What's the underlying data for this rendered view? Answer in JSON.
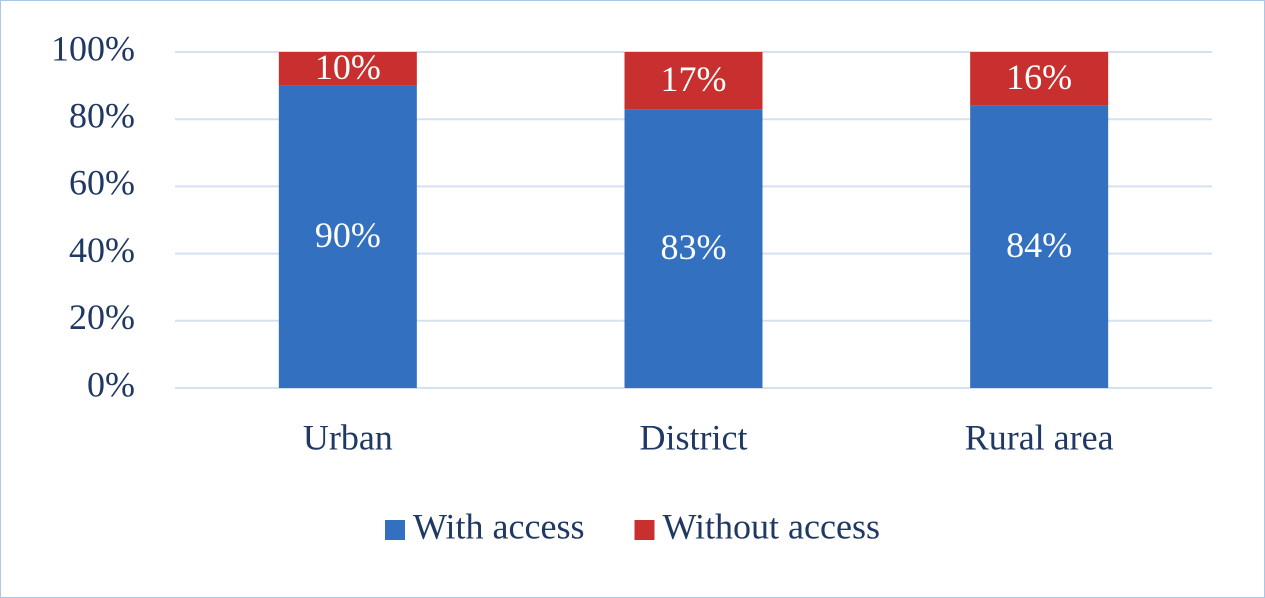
{
  "chart_data": {
    "type": "stacked-bar",
    "categories": [
      "Urban",
      "District",
      "Rural area"
    ],
    "series": [
      {
        "name": "With access",
        "color": "#3470c0",
        "values": [
          90,
          83,
          84
        ],
        "value_labels": [
          "90%",
          "83%",
          "84%"
        ]
      },
      {
        "name": "Without access",
        "color": "#c7302e",
        "values": [
          10,
          17,
          16
        ],
        "value_labels": [
          "10%",
          "17%",
          "16%"
        ]
      }
    ],
    "ylim": [
      0,
      100
    ],
    "yticks": [
      {
        "value": 0,
        "label": "0%"
      },
      {
        "value": 20,
        "label": "20%"
      },
      {
        "value": 40,
        "label": "40%"
      },
      {
        "value": 60,
        "label": "60%"
      },
      {
        "value": 80,
        "label": "80%"
      },
      {
        "value": 100,
        "label": "100%"
      }
    ],
    "grid": true
  }
}
